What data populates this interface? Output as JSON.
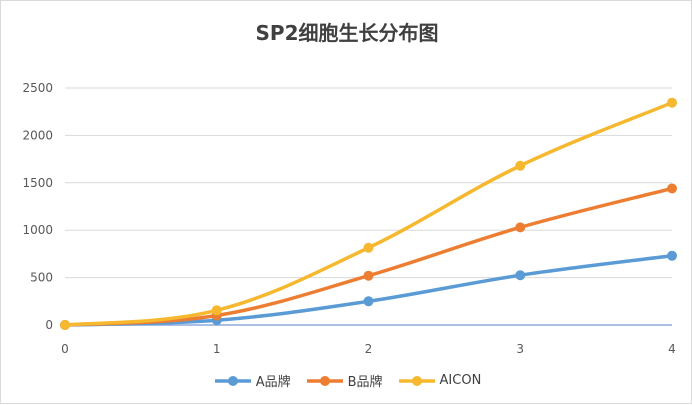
{
  "chart_data": {
    "type": "line",
    "title": "SP2细胞生长分布图",
    "x": [
      0,
      1,
      2,
      3,
      4
    ],
    "xlim": [
      0,
      4
    ],
    "ylim": [
      0,
      2500
    ],
    "x_ticks": [
      "0",
      "1",
      "2",
      "3",
      "4"
    ],
    "y_ticks": [
      "0",
      "500",
      "1000",
      "1500",
      "2000",
      "2500"
    ],
    "grid": "horizontal",
    "legend_position": "bottom",
    "series": [
      {
        "name": "A品牌",
        "values": [
          0,
          50,
          250,
          525,
          730
        ],
        "color": "#5b9bd5"
      },
      {
        "name": "B品牌",
        "values": [
          0,
          100,
          520,
          1030,
          1440
        ],
        "color": "#ed7d31"
      },
      {
        "name": "AICON",
        "values": [
          0,
          155,
          815,
          1680,
          2345
        ],
        "color": "#f5b82e"
      }
    ]
  }
}
